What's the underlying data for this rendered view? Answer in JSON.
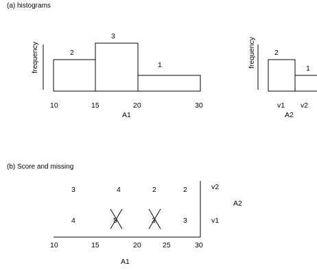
{
  "section_a_title": "(a) histograms",
  "section_b_title": "(b) Score and missing",
  "hist_a1": {
    "ylabel": "frequency",
    "xlabel": "A1",
    "ticks": [
      "10",
      "15",
      "20",
      "30"
    ],
    "bar_labels": [
      "2",
      "3",
      "1"
    ]
  },
  "hist_a2": {
    "ylabel": "frequency",
    "xlabel": "A2",
    "ticks": [
      "v1",
      "v2"
    ],
    "bar_labels": [
      "2",
      "1"
    ]
  },
  "chart_data": [
    {
      "type": "bar",
      "title": "",
      "xlabel": "A1",
      "ylabel": "frequency",
      "bins": [
        [
          10,
          15
        ],
        [
          15,
          20
        ],
        [
          20,
          30
        ]
      ],
      "values": [
        2,
        3,
        1
      ]
    },
    {
      "type": "bar",
      "title": "",
      "xlabel": "A2",
      "ylabel": "frequency",
      "categories": [
        "v1",
        "v2"
      ],
      "values": [
        2,
        1
      ]
    }
  ],
  "score_grid": {
    "xlabel": "A1",
    "ylabel": "A2",
    "x_ticks": [
      "10",
      "15",
      "20",
      "25",
      "30"
    ],
    "row_labels": [
      "v2",
      "v1"
    ],
    "rows": [
      [
        "3",
        "4",
        "2",
        "2"
      ],
      [
        "4",
        "5",
        "3",
        "3"
      ]
    ],
    "crossed_out": [
      "5",
      "3"
    ]
  }
}
